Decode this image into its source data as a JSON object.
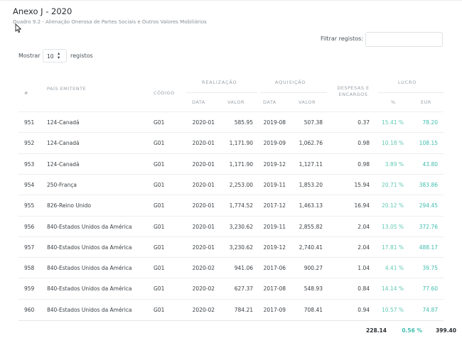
{
  "page": {
    "title": "Anexo J - 2020",
    "subtitle": "Quadro 9.2 - Alienação Onerosa de Partes Sociais e Outros Valores Mobiliários"
  },
  "controls": {
    "filter_label": "Filtrar registos:",
    "filter_value": "",
    "show_label": "Mostrar",
    "page_size": "10",
    "records_label": "registos"
  },
  "table": {
    "headers": {
      "num": "#",
      "country": "País Emitente",
      "code": "Código",
      "realizacao": "Realização",
      "aquisicao": "Aquisição",
      "despesas": "Despesas e Encargos",
      "lucro": "Lucro",
      "data": "Data",
      "valor": "Valor",
      "pct": "%",
      "eur": "EUR"
    },
    "rows": [
      {
        "num": "951",
        "country": "124-Canadá",
        "code": "G01",
        "r_date": "2020-01",
        "r_value": "585.95",
        "a_date": "2019-08",
        "a_value": "507.38",
        "expenses": "0.37",
        "pct": "15.41 %",
        "eur": "78.20"
      },
      {
        "num": "952",
        "country": "124-Canadá",
        "code": "G01",
        "r_date": "2020-01",
        "r_value": "1,171.90",
        "a_date": "2019-09",
        "a_value": "1,062.76",
        "expenses": "0.98",
        "pct": "10.18 %",
        "eur": "108.15"
      },
      {
        "num": "953",
        "country": "124-Canadá",
        "code": "G01",
        "r_date": "2020-01",
        "r_value": "1,171.90",
        "a_date": "2019-12",
        "a_value": "1,127.11",
        "expenses": "0.98",
        "pct": "3.89 %",
        "eur": "43.80"
      },
      {
        "num": "954",
        "country": "250-França",
        "code": "G01",
        "r_date": "2020-01",
        "r_value": "2,253.00",
        "a_date": "2019-11",
        "a_value": "1,853.20",
        "expenses": "15.94",
        "pct": "20.71 %",
        "eur": "383.86"
      },
      {
        "num": "955",
        "country": "826-Reino Unido",
        "code": "G01",
        "r_date": "2020-01",
        "r_value": "1,774.52",
        "a_date": "2017-12",
        "a_value": "1,463.13",
        "expenses": "16.94",
        "pct": "20.12 %",
        "eur": "294.45"
      },
      {
        "num": "956",
        "country": "840-Estados Unidos da América",
        "code": "G01",
        "r_date": "2020-01",
        "r_value": "3,230.62",
        "a_date": "2019-11",
        "a_value": "2,855.82",
        "expenses": "2.04",
        "pct": "13.05 %",
        "eur": "372.76"
      },
      {
        "num": "957",
        "country": "840-Estados Unidos da América",
        "code": "G01",
        "r_date": "2020-01",
        "r_value": "3,230.62",
        "a_date": "2019-12",
        "a_value": "2,740.41",
        "expenses": "2.04",
        "pct": "17.81 %",
        "eur": "488.17"
      },
      {
        "num": "958",
        "country": "840-Estados Unidos da América",
        "code": "G01",
        "r_date": "2020-02",
        "r_value": "941.06",
        "a_date": "2017-06",
        "a_value": "900.27",
        "expenses": "1.04",
        "pct": "4.41 %",
        "eur": "39.75"
      },
      {
        "num": "959",
        "country": "840-Estados Unidos da América",
        "code": "G01",
        "r_date": "2020-02",
        "r_value": "627.37",
        "a_date": "2017-08",
        "a_value": "548.93",
        "expenses": "0.84",
        "pct": "14.14 %",
        "eur": "77.60"
      },
      {
        "num": "960",
        "country": "840-Estados Unidos da América",
        "code": "G01",
        "r_date": "2020-02",
        "r_value": "784.21",
        "a_date": "2017-09",
        "a_value": "708.41",
        "expenses": "0.94",
        "pct": "10.57 %",
        "eur": "74.87"
      }
    ],
    "totals": {
      "expenses": "228.14",
      "pct": "0.56 %",
      "eur": "399.40"
    }
  },
  "colors": {
    "accent": "#3fbcad",
    "pct_green": "#5fc9b3"
  }
}
